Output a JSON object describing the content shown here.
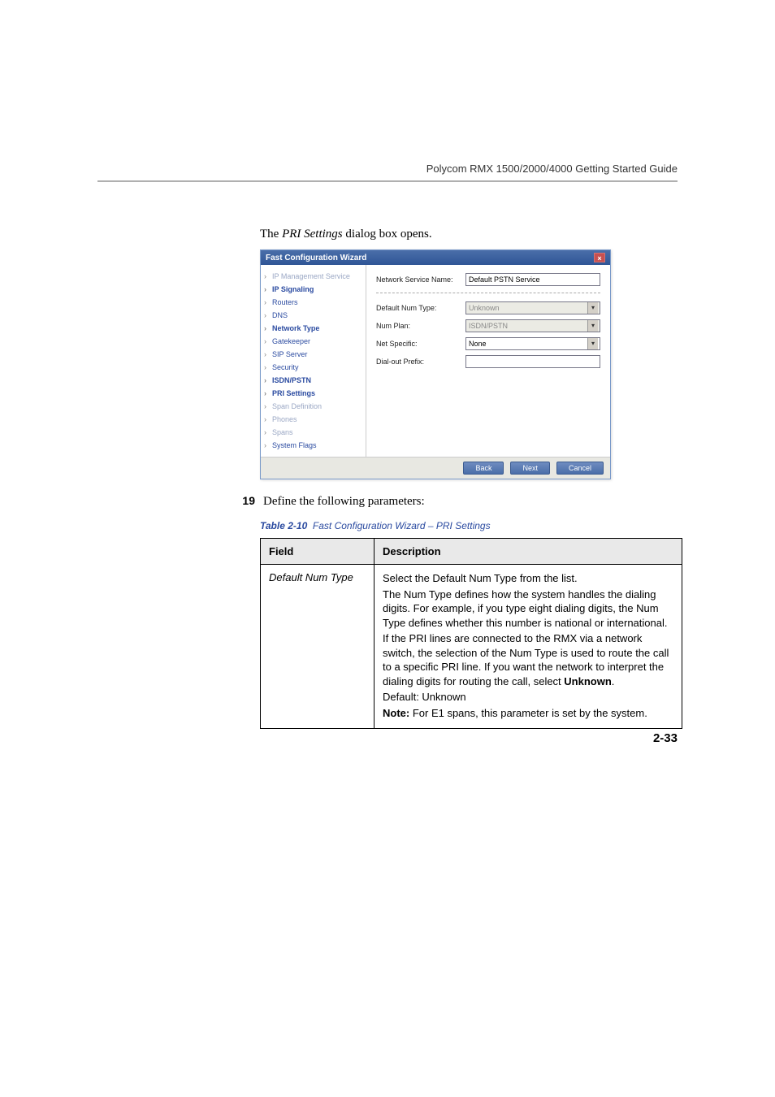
{
  "header": {
    "doc_title": "Polycom RMX 1500/2000/4000 Getting Started Guide"
  },
  "intro": {
    "prefix": "The ",
    "italic": "PRI Settings",
    "suffix": " dialog box opens."
  },
  "dialog": {
    "title": "Fast Configuration Wizard",
    "nav": [
      {
        "label": "IP Management Service",
        "state": "disabled"
      },
      {
        "label": "IP Signaling",
        "state": "bold"
      },
      {
        "label": "Routers",
        "state": "normal"
      },
      {
        "label": "DNS",
        "state": "normal"
      },
      {
        "label": "Network Type",
        "state": "bold"
      },
      {
        "label": "Gatekeeper",
        "state": "normal"
      },
      {
        "label": "SIP Server",
        "state": "normal"
      },
      {
        "label": "Security",
        "state": "normal"
      },
      {
        "label": "ISDN/PSTN",
        "state": "bold"
      },
      {
        "label": "PRI Settings",
        "state": "bold"
      },
      {
        "label": "Span Definition",
        "state": "disabled"
      },
      {
        "label": "Phones",
        "state": "disabled"
      },
      {
        "label": "Spans",
        "state": "disabled"
      },
      {
        "label": "System Flags",
        "state": "normal"
      }
    ],
    "fields": {
      "service_name_label": "Network Service Name:",
      "service_name_value": "Default PSTN Service",
      "default_num_type_label": "Default Num Type:",
      "default_num_type_value": "Unknown",
      "num_plan_label": "Num Plan:",
      "num_plan_value": "ISDN/PSTN",
      "net_specific_label": "Net Specific:",
      "net_specific_value": "None",
      "dial_out_prefix_label": "Dial-out Prefix:",
      "dial_out_prefix_value": ""
    },
    "buttons": {
      "back": "Back",
      "next": "Next",
      "cancel": "Cancel"
    }
  },
  "step": {
    "num": "19",
    "text": "Define the following parameters:"
  },
  "table": {
    "caption_bold": "Table 2-10",
    "caption_rest": "Fast Configuration Wizard – PRI Settings",
    "col1": "Field",
    "col2": "Description",
    "row1_field": "Default Num Type",
    "row1_desc": {
      "p1": "Select the Default Num Type from the list.",
      "p2": "The Num Type defines how the system handles the dialing digits. For example, if you type eight dialing digits, the Num Type defines whether this number is national or international.",
      "p3a": "If the PRI lines are connected to the RMX via a network switch, the selection of the Num Type is used to route the call to a specific PRI line. If you want the network to interpret the dialing digits for routing the call, select ",
      "p3b": "Unknown",
      "p3c": ".",
      "p4": "Default: Unknown",
      "p5a": "Note:",
      "p5b": " For E1 spans, this parameter is set by the system."
    }
  },
  "page_number": "2-33",
  "colors": {
    "link_blue": "#2a4aa0",
    "titlebar_start": "#4a6ea9",
    "titlebar_end": "#2f5596"
  }
}
